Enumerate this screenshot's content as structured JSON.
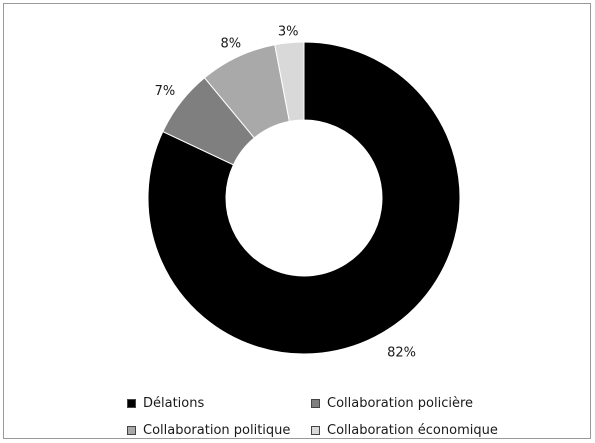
{
  "chart_data": {
    "type": "pie",
    "variant": "donut",
    "title": "",
    "categories": [
      "Délations",
      "Collaboration policière",
      "Collaboration politique",
      "Collaboration économique"
    ],
    "values": [
      82,
      7,
      8,
      3
    ],
    "labels": [
      "82%",
      "7%",
      "8%",
      "3%"
    ],
    "colors": [
      "#000000",
      "#7f7f7f",
      "#a9a9a9",
      "#d9d9d9"
    ],
    "legend_position": "bottom"
  }
}
